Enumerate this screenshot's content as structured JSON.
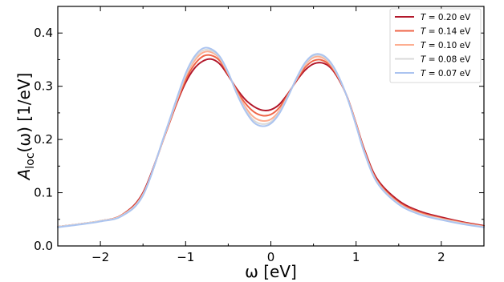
{
  "chart_data": {
    "type": "line",
    "title": "",
    "xlabel": "ω [eV]",
    "ylabel": "A_loc(ω) [1/eV]",
    "ylabel_parts": {
      "main": "A",
      "sub": "loc",
      "rest": "(ω) [1/eV]"
    },
    "xlim": [
      -2.5,
      2.5
    ],
    "ylim": [
      0.0,
      0.45
    ],
    "xticks": [
      -2,
      -1,
      0,
      1,
      2
    ],
    "xtick_labels": [
      "−2",
      "−1",
      "0",
      "1",
      "2"
    ],
    "yticks": [
      0.0,
      0.1,
      0.2,
      0.3,
      0.4
    ],
    "ytick_labels": [
      "0.0",
      "0.1",
      "0.2",
      "0.3",
      "0.4"
    ],
    "grid": false,
    "legend_position": "top-right",
    "x": [
      -2.5,
      -2.25,
      -2.0,
      -1.75,
      -1.5,
      -1.25,
      -1.1,
      -1.0,
      -0.9,
      -0.8,
      -0.7,
      -0.6,
      -0.5,
      -0.4,
      -0.3,
      -0.2,
      -0.1,
      0.0,
      0.1,
      0.2,
      0.3,
      0.4,
      0.5,
      0.6,
      0.7,
      0.8,
      0.9,
      1.0,
      1.1,
      1.25,
      1.5,
      1.75,
      2.0,
      2.25,
      2.5
    ],
    "series": [
      {
        "name": "T = 0.20 eV",
        "legend": {
          "var": "T",
          "value": "= 0.20 eV"
        },
        "color": "#b2182b",
        "values": [
          0.036,
          0.041,
          0.047,
          0.058,
          0.1,
          0.205,
          0.27,
          0.307,
          0.333,
          0.347,
          0.351,
          0.342,
          0.32,
          0.295,
          0.275,
          0.262,
          0.255,
          0.256,
          0.266,
          0.286,
          0.31,
          0.33,
          0.342,
          0.344,
          0.335,
          0.312,
          0.278,
          0.23,
          0.18,
          0.125,
          0.085,
          0.065,
          0.054,
          0.045,
          0.038
        ]
      },
      {
        "name": "T = 0.14 eV",
        "legend": {
          "var": "T",
          "value": "= 0.14 eV"
        },
        "color": "#ef6548",
        "values": [
          0.036,
          0.041,
          0.047,
          0.058,
          0.098,
          0.205,
          0.272,
          0.312,
          0.34,
          0.356,
          0.358,
          0.348,
          0.322,
          0.292,
          0.268,
          0.252,
          0.245,
          0.247,
          0.26,
          0.284,
          0.312,
          0.335,
          0.348,
          0.349,
          0.338,
          0.314,
          0.278,
          0.23,
          0.178,
          0.122,
          0.082,
          0.063,
          0.052,
          0.044,
          0.037
        ]
      },
      {
        "name": "T = 0.10 eV",
        "legend": {
          "var": "T",
          "value": "= 0.10 eV"
        },
        "color": "#fdae91",
        "values": [
          0.036,
          0.041,
          0.047,
          0.057,
          0.097,
          0.206,
          0.275,
          0.318,
          0.347,
          0.363,
          0.364,
          0.352,
          0.324,
          0.289,
          0.261,
          0.242,
          0.235,
          0.238,
          0.254,
          0.282,
          0.313,
          0.34,
          0.354,
          0.354,
          0.341,
          0.315,
          0.277,
          0.228,
          0.176,
          0.12,
          0.08,
          0.061,
          0.051,
          0.043,
          0.036
        ]
      },
      {
        "name": "T = 0.08 eV",
        "legend": {
          "var": "T",
          "value": "= 0.08 eV"
        },
        "color": "#d9d9d9",
        "values": [
          0.036,
          0.041,
          0.047,
          0.057,
          0.096,
          0.207,
          0.277,
          0.321,
          0.351,
          0.367,
          0.367,
          0.354,
          0.325,
          0.287,
          0.257,
          0.236,
          0.229,
          0.233,
          0.251,
          0.281,
          0.314,
          0.342,
          0.357,
          0.357,
          0.343,
          0.316,
          0.277,
          0.227,
          0.175,
          0.119,
          0.079,
          0.06,
          0.05,
          0.042,
          0.036
        ]
      },
      {
        "name": "T = 0.07 eV",
        "legend": {
          "var": "T",
          "value": "= 0.07 eV"
        },
        "color": "#abc4f0",
        "values": [
          0.035,
          0.04,
          0.046,
          0.056,
          0.095,
          0.208,
          0.279,
          0.324,
          0.355,
          0.371,
          0.37,
          0.356,
          0.326,
          0.286,
          0.254,
          0.232,
          0.225,
          0.23,
          0.249,
          0.28,
          0.315,
          0.344,
          0.359,
          0.359,
          0.345,
          0.317,
          0.277,
          0.226,
          0.174,
          0.118,
          0.078,
          0.059,
          0.049,
          0.041,
          0.035
        ]
      }
    ]
  }
}
